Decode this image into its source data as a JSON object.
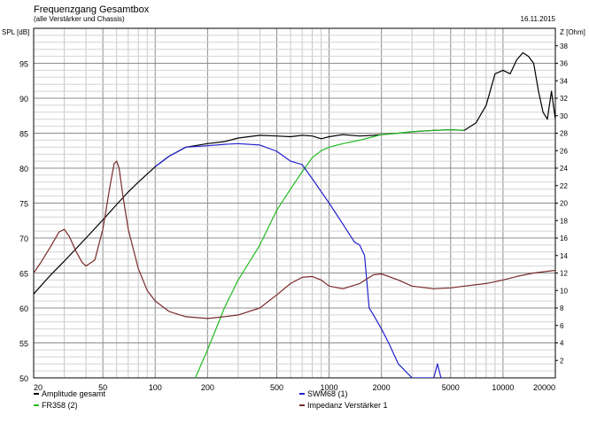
{
  "chart_data": {
    "type": "line",
    "title": "Frequenzgang Gesamtbox",
    "subtitle": "(alle Verstärker und Chassis)",
    "date": "16.11.2015",
    "ylabel": "SPL [dB]",
    "y2label": "Z [Ohm]",
    "xscale": "log",
    "xlim": [
      20,
      20000
    ],
    "ylim": [
      50,
      100
    ],
    "y2lim": [
      0,
      40
    ],
    "grid": true,
    "x_ticks": [
      "20",
      "50",
      "100",
      "200",
      "500",
      "1000",
      "2000",
      "5000",
      "10000",
      "20000"
    ],
    "y_ticks": [
      "50",
      "55",
      "60",
      "65",
      "70",
      "75",
      "80",
      "85",
      "90",
      "95"
    ],
    "y2_ticks": [
      "2",
      "4",
      "6",
      "8",
      "10",
      "12",
      "14",
      "16",
      "18",
      "20",
      "22",
      "24",
      "26",
      "28",
      "30",
      "32",
      "34",
      "36",
      "38"
    ],
    "legend_placement": "bottom",
    "series": [
      {
        "name": "Amplitude gesamt",
        "color": "#000000",
        "axis": "left",
        "x": [
          20,
          25,
          30,
          40,
          50,
          60,
          70,
          80,
          100,
          120,
          150,
          200,
          250,
          300,
          400,
          500,
          600,
          700,
          800,
          900,
          1000,
          1200,
          1500,
          1800,
          2000,
          2500,
          3000,
          4000,
          5000,
          6000,
          7000,
          8000,
          9000,
          10000,
          11000,
          12000,
          13000,
          14000,
          15000,
          16000,
          17000,
          18000,
          19000,
          20000
        ],
        "y": [
          62,
          64.7,
          66.7,
          70,
          72.6,
          74.8,
          76.6,
          78,
          80.2,
          81.7,
          83,
          83.5,
          83.8,
          84.3,
          84.7,
          84.6,
          84.5,
          84.7,
          84.6,
          84.2,
          84.5,
          84.8,
          84.6,
          84.7,
          84.8,
          85,
          85.2,
          85.4,
          85.5,
          85.4,
          86.5,
          89,
          93.5,
          94,
          93.5,
          95.5,
          96.5,
          96,
          95,
          91,
          88,
          87,
          91,
          87
        ]
      },
      {
        "name": "FR358 (2)",
        "color": "#22bb22",
        "axis": "left",
        "x": [
          150,
          170,
          200,
          250,
          300,
          400,
          500,
          600,
          700,
          800,
          900,
          1000,
          1200,
          1500,
          1800,
          2000,
          2500,
          3000,
          4000,
          5000,
          6000
        ],
        "y": [
          48,
          50,
          54,
          60,
          64,
          69,
          74,
          77,
          79.5,
          81.5,
          82.5,
          83,
          83.5,
          84,
          84.5,
          84.8,
          85,
          85.2,
          85.4,
          85.5,
          85.4
        ]
      },
      {
        "name": "SWM68 (1)",
        "color": "#2222cc",
        "axis": "left",
        "x": [
          100,
          120,
          150,
          200,
          250,
          300,
          400,
          500,
          600,
          700,
          800,
          1000,
          1200,
          1400,
          1500,
          1600,
          1700,
          1800,
          2000,
          2200,
          2500,
          3000,
          3500,
          4000,
          4200,
          4400,
          4600
        ],
        "y": [
          80.2,
          81.7,
          83,
          83.2,
          83.4,
          83.5,
          83.3,
          82.4,
          81,
          80.5,
          78.5,
          75,
          72,
          69.4,
          69,
          67.5,
          60,
          59,
          57,
          55,
          52,
          50,
          50,
          50,
          52,
          50,
          50
        ]
      },
      {
        "name": "Impedanz Verstärker 1",
        "color": "#7a2a2a",
        "axis": "right",
        "x": [
          20,
          22,
          25,
          28,
          30,
          32,
          35,
          38,
          40,
          45,
          50,
          55,
          58,
          60,
          62,
          65,
          70,
          80,
          90,
          100,
          120,
          150,
          200,
          250,
          300,
          400,
          500,
          600,
          700,
          800,
          900,
          1000,
          1200,
          1500,
          1800,
          2000,
          2500,
          3000,
          4000,
          5000,
          6000,
          8000,
          10000,
          12000,
          15000,
          20000
        ],
        "y": [
          12,
          13.2,
          15,
          16.7,
          17,
          16.2,
          14.5,
          13.2,
          12.8,
          13.5,
          17,
          22,
          24.5,
          24.8,
          24,
          21,
          17,
          12.5,
          10,
          8.8,
          7.6,
          7,
          6.8,
          7,
          7.2,
          8,
          9.5,
          10.8,
          11.5,
          11.6,
          11.2,
          10.5,
          10.2,
          10.8,
          11.8,
          11.9,
          11.2,
          10.5,
          10.2,
          10.3,
          10.5,
          10.8,
          11.2,
          11.6,
          12,
          12.3
        ]
      }
    ]
  }
}
